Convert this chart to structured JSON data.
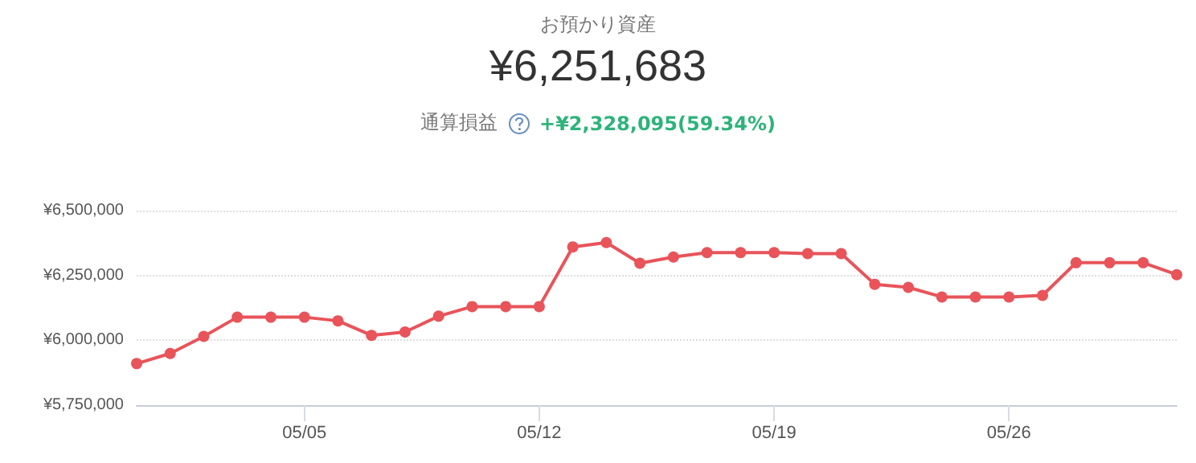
{
  "chart_data": {
    "type": "line",
    "title": "お預かり資産",
    "subtitle": "¥6,251,683",
    "annotations": [
      "通算損益",
      "+¥2,328,095(59.34%)"
    ],
    "x": [
      "--04-30",
      "--05-01",
      "--05-02",
      "--05-03",
      "--05-04",
      "--05-05",
      "--05-06",
      "--05-07",
      "--05-08",
      "--05-09",
      "--05-10",
      "--05-11",
      "--05-12",
      "--05-13",
      "--05-14",
      "--05-15",
      "--05-16",
      "--05-17",
      "--05-18",
      "--05-19",
      "--05-20",
      "--05-21",
      "--05-22",
      "--05-23",
      "--05-24",
      "--05-25",
      "--05-26",
      "--05-27",
      "--05-28",
      "--05-29",
      "--05-30",
      "--05-31"
    ],
    "series": [
      {
        "color": "#e8545a",
        "values": [
          5910000,
          5949000,
          6015000,
          6089000,
          6089000,
          6089000,
          6075000,
          6019000,
          6032000,
          6093000,
          6130000,
          6130000,
          6130000,
          6360000,
          6377000,
          6297000,
          6321000,
          6338000,
          6338000,
          6338000,
          6334000,
          6334000,
          6216000,
          6204000,
          6167000,
          6167000,
          6167000,
          6173000,
          6299000,
          6299000,
          6299000,
          6253000
        ]
      }
    ],
    "xlim": [
      "--04-30",
      "--05-31"
    ],
    "xticks": [
      {
        "value": "--05-05",
        "label": "05/05"
      },
      {
        "value": "--05-12",
        "label": "05/12"
      },
      {
        "value": "--05-19",
        "label": "05/19"
      },
      {
        "value": "--05-26",
        "label": "05/26"
      }
    ],
    "ylim": [
      5750000,
      6500000
    ],
    "yticks": [
      {
        "value": 5750000,
        "label": "¥5,750,000"
      },
      {
        "value": 6000000,
        "label": "¥6,000,000"
      },
      {
        "value": 6250000,
        "label": "¥6,250,000"
      },
      {
        "value": 6500000,
        "label": "¥6,500,000"
      }
    ],
    "grid": "y",
    "marker": "circle",
    "line_style": "solid"
  }
}
